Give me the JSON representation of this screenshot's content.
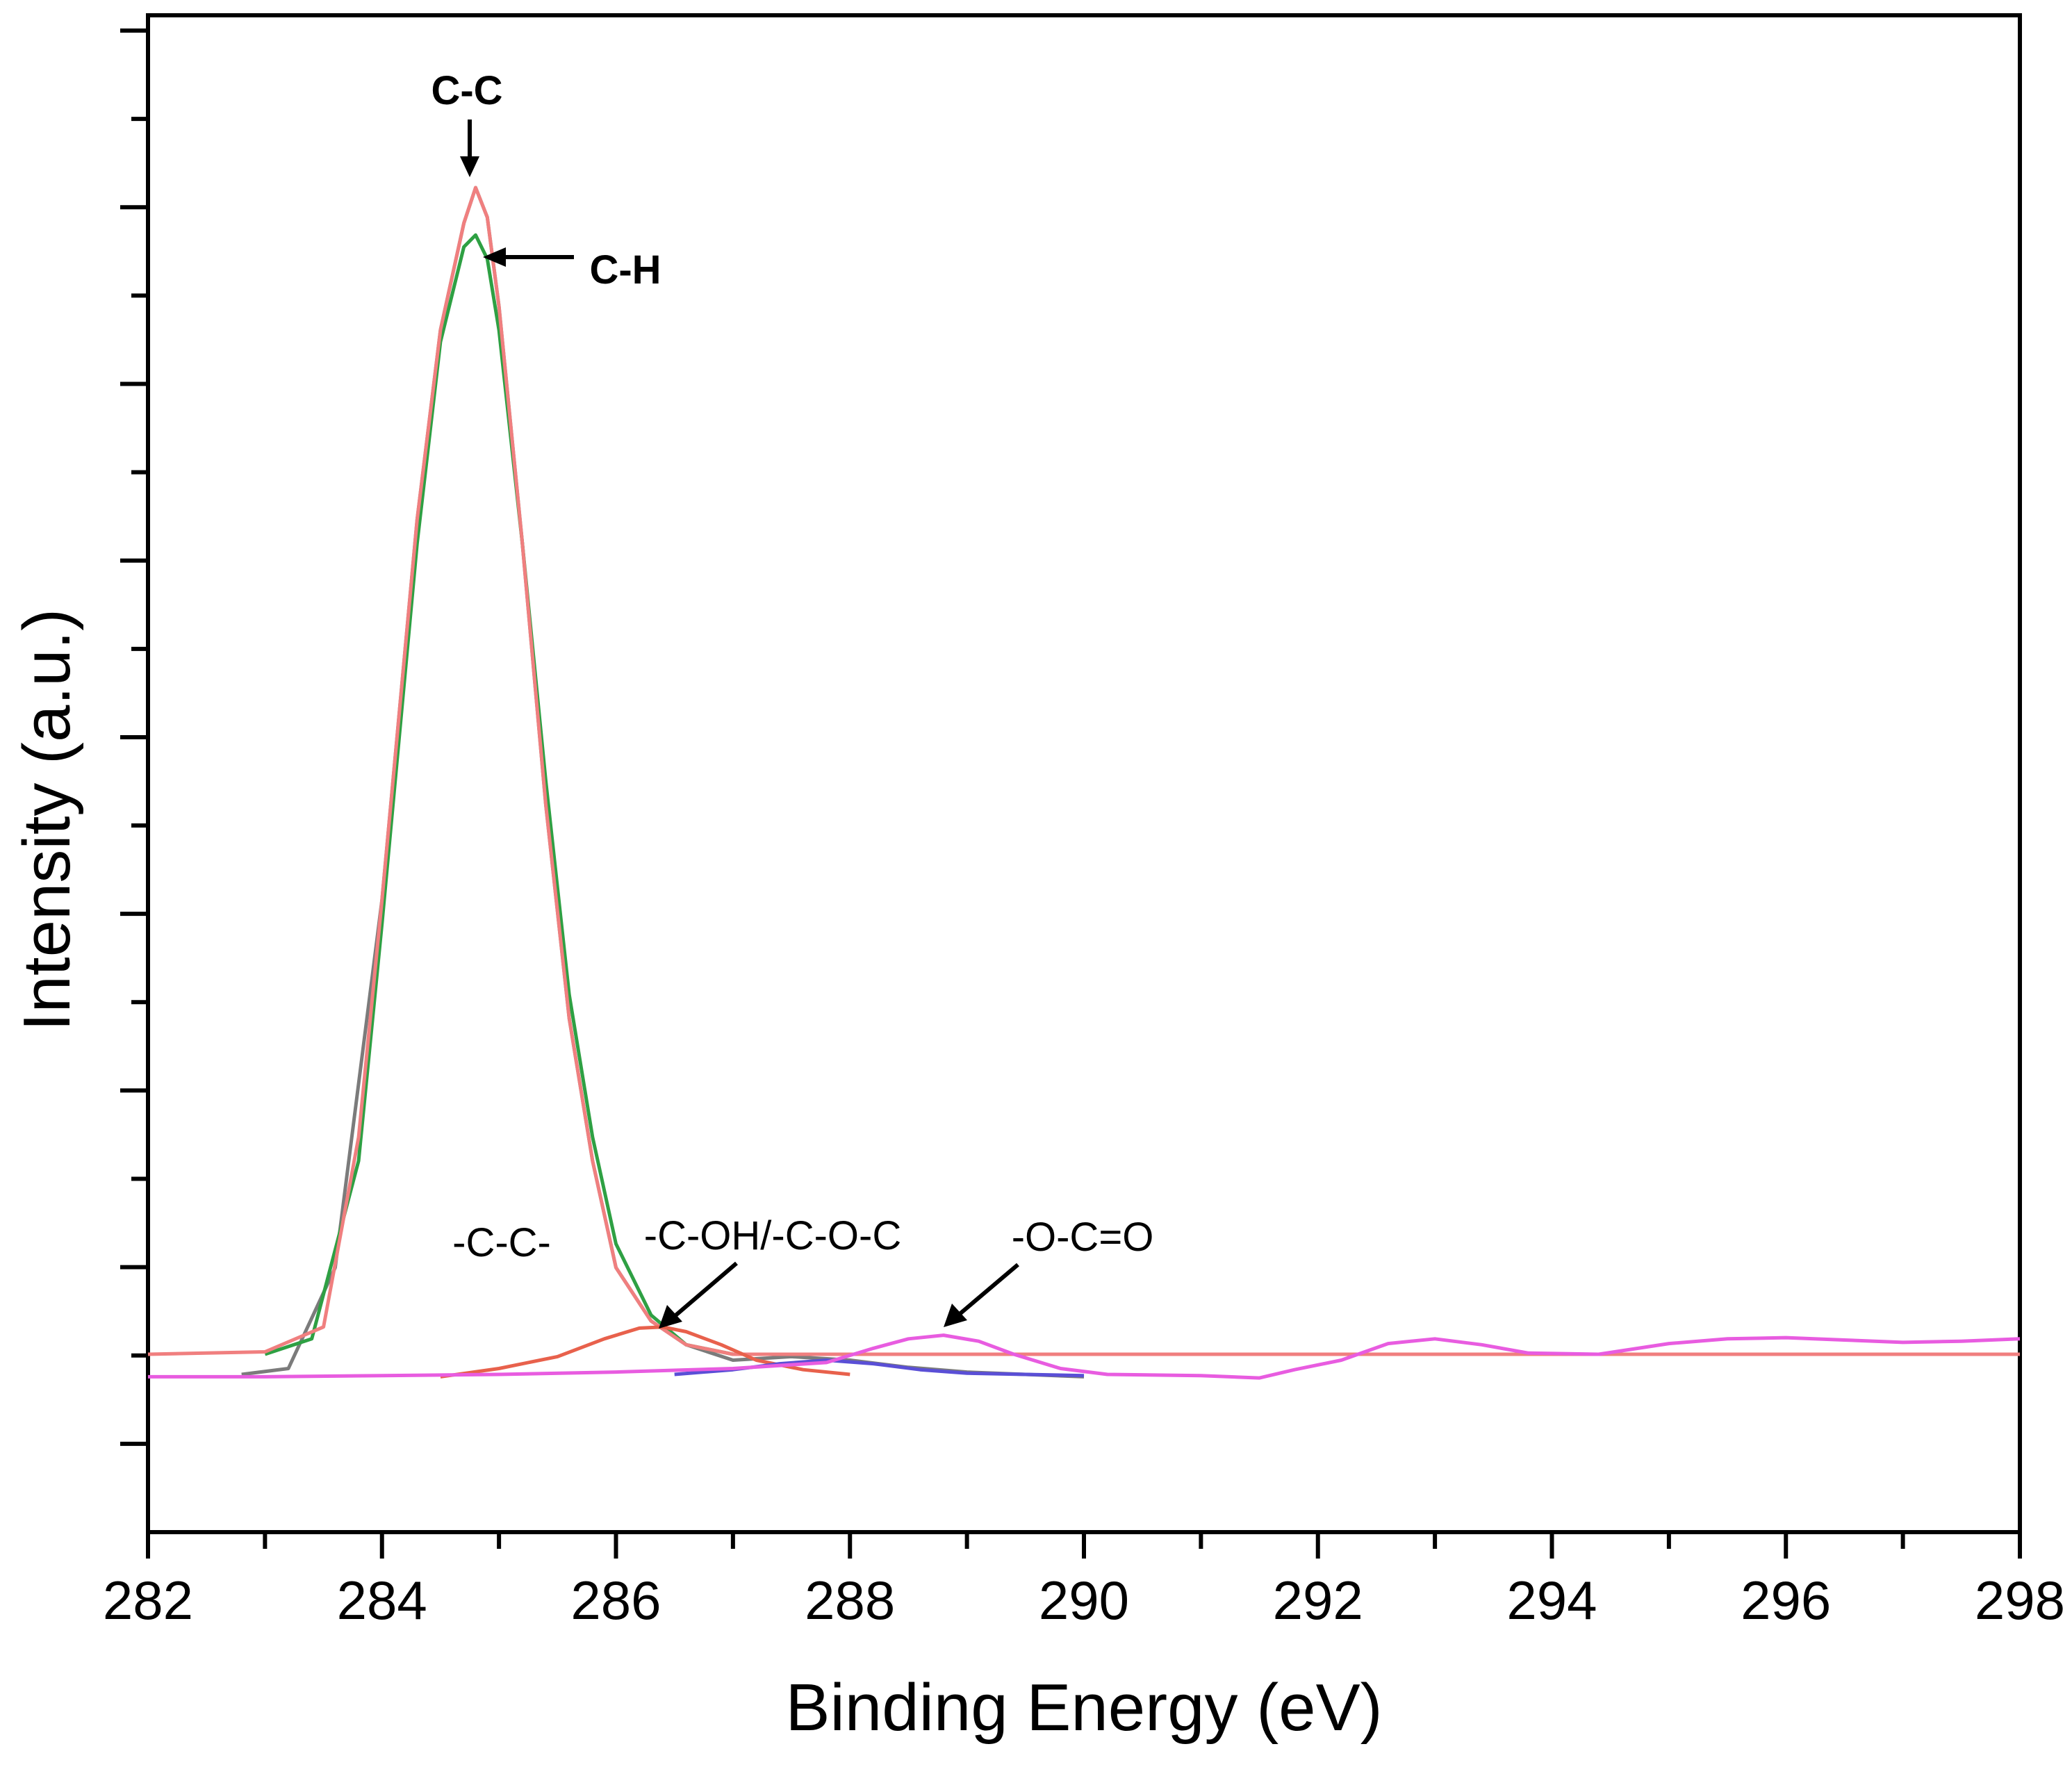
{
  "chart_data": {
    "type": "line",
    "title": "",
    "xlabel": "Binding Energy (eV)",
    "ylabel": "Intensity (a.u.)",
    "xlim": [
      282,
      298
    ],
    "ylim": [
      -0.1,
      1.0
    ],
    "x_ticks": [
      "282",
      "284",
      "286",
      "288",
      "290",
      "292",
      "294",
      "296",
      "298"
    ],
    "grid": false,
    "legend": "none",
    "series": [
      {
        "color": "#7b7b7b",
        "x": [
          282.8,
          283.2,
          283.6,
          284.0,
          284.3,
          284.5,
          284.7,
          284.8,
          284.9,
          285.0,
          285.2,
          285.4,
          285.6,
          285.8,
          286.0,
          286.3,
          286.6,
          287.0,
          287.5,
          288.0,
          288.5,
          289.0,
          289.5,
          290.0
        ],
        "y": [
          0.0,
          0.005,
          0.09,
          0.4,
          0.72,
          0.88,
          0.97,
          1.0,
          0.975,
          0.9,
          0.7,
          0.48,
          0.3,
          0.18,
          0.09,
          0.045,
          0.025,
          0.012,
          0.015,
          0.012,
          0.006,
          0.002,
          0.0,
          -0.002
        ]
      },
      {
        "color": "#2ea043",
        "x": [
          283.0,
          283.4,
          283.8,
          284.0,
          284.3,
          284.5,
          284.7,
          284.8,
          284.9,
          285.0,
          285.2,
          285.4,
          285.6,
          285.8,
          286.0,
          286.3,
          286.6,
          287.0
        ],
        "y": [
          0.017,
          0.03,
          0.18,
          0.38,
          0.7,
          0.87,
          0.95,
          0.96,
          0.94,
          0.88,
          0.7,
          0.5,
          0.32,
          0.2,
          0.11,
          0.05,
          0.025,
          0.017
        ]
      },
      {
        "color": "#f07f7f",
        "x": [
          282.0,
          283.0,
          283.5,
          283.8,
          284.0,
          284.3,
          284.5,
          284.7,
          284.8,
          284.9,
          285.0,
          285.2,
          285.4,
          285.6,
          285.8,
          286.0,
          286.3,
          286.6,
          287.0,
          287.5,
          288.0,
          290.0,
          294.0,
          298.0
        ],
        "y": [
          0.017,
          0.019,
          0.04,
          0.2,
          0.4,
          0.72,
          0.88,
          0.97,
          1.0,
          0.975,
          0.9,
          0.7,
          0.48,
          0.3,
          0.18,
          0.09,
          0.045,
          0.025,
          0.017,
          0.017,
          0.017,
          0.017,
          0.017,
          0.017
        ]
      },
      {
        "color": "#e8614c",
        "x": [
          284.5,
          285.0,
          285.5,
          285.9,
          286.2,
          286.4,
          286.6,
          286.9,
          287.2,
          287.6,
          288.0
        ],
        "y": [
          -0.002,
          0.005,
          0.015,
          0.03,
          0.039,
          0.04,
          0.036,
          0.025,
          0.012,
          0.004,
          0.0
        ]
      },
      {
        "color": "#5a4fd6",
        "x": [
          286.5,
          287.0,
          287.4,
          287.8,
          288.2,
          288.6,
          289.0,
          289.5,
          290.0
        ],
        "y": [
          0.0,
          0.004,
          0.009,
          0.012,
          0.009,
          0.004,
          0.001,
          0.0,
          -0.001
        ]
      },
      {
        "color": "#e85ce0",
        "x": [
          282.0,
          283.0,
          284.0,
          285.0,
          286.0,
          287.0,
          287.8,
          288.2,
          288.5,
          288.8,
          289.1,
          289.4,
          289.8,
          290.2,
          291.0,
          291.5,
          291.8,
          292.2,
          292.6,
          293.0,
          293.4,
          293.8,
          294.4,
          295.0,
          295.5,
          296.0,
          296.5,
          297.0,
          297.5,
          298.0
        ],
        "y": [
          -0.002,
          -0.002,
          -0.001,
          0.0,
          0.002,
          0.005,
          0.01,
          0.022,
          0.03,
          0.033,
          0.028,
          0.017,
          0.005,
          0.0,
          -0.001,
          -0.003,
          0.004,
          0.012,
          0.026,
          0.03,
          0.025,
          0.018,
          0.017,
          0.026,
          0.03,
          0.031,
          0.029,
          0.027,
          0.028,
          0.03
        ]
      }
    ],
    "annotations": [
      {
        "text": "C-C",
        "x": 284.8,
        "y": 1.0
      },
      {
        "text": "C-H",
        "x": 284.85,
        "y": 0.96
      },
      {
        "text": "-C-C-",
        "x": 285.2,
        "y": 0.09
      },
      {
        "text": "-C-OH/-C-O-C",
        "x": 286.3,
        "y": 0.04
      },
      {
        "text": "-O-C=O",
        "x": 288.8,
        "y": 0.033
      }
    ]
  }
}
